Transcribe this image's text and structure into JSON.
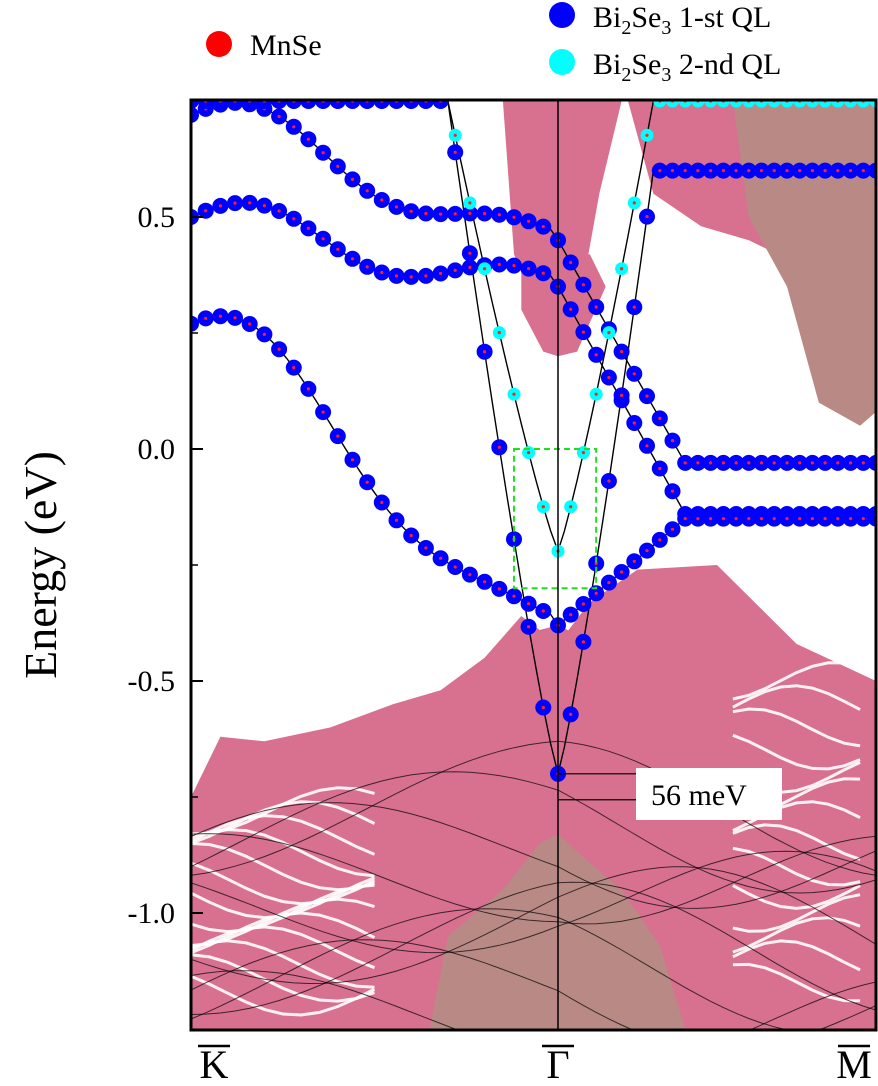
{
  "chart_data": {
    "type": "scatter",
    "title": "",
    "xlabel": "",
    "ylabel": "Energy (eV)",
    "ylim": [
      -1.25,
      0.75
    ],
    "xlim": [
      -1,
      1
    ],
    "y_ticks": [
      0.5,
      0.0,
      -0.5,
      -1.0
    ],
    "y_tick_labels": [
      "0.5",
      "0.0",
      "-0.5",
      "-1.0"
    ],
    "k_points": [
      {
        "x": -1,
        "label": "K",
        "overline": true
      },
      {
        "x": 0,
        "label": "Γ",
        "overline": true
      },
      {
        "x": 1,
        "label": "M",
        "overline": true
      }
    ],
    "grid": false,
    "legend_position": "top",
    "legend": [
      {
        "name": "MnSe",
        "color": "#ff0000"
      },
      {
        "name_parts": [
          "Bi",
          "2",
          "Se",
          "3",
          " 1-st QL"
        ],
        "color": "#0000ff"
      },
      {
        "name_parts": [
          "Bi",
          "2",
          "Se",
          "3",
          " 2-nd QL"
        ],
        "color": "#00ffff"
      }
    ],
    "colors": {
      "bulk_fill": "#d8708f",
      "bulk_fill_dark": "#b98a85",
      "band_line": "#000000",
      "highlight_box": "#22dd22"
    },
    "highlight_box": {
      "x0": -0.12,
      "x1": 0.12,
      "y0": -0.3,
      "y1": 0.0
    },
    "annotation": {
      "text": "56 meV",
      "y_top": -0.7,
      "y_bottom": -0.756
    },
    "series": [
      {
        "name": "Bi2Se3 1-st QL",
        "color": "#0000ff",
        "style": "shallow",
        "y_left": 0.72,
        "y_mid": 0.45,
        "y_right": -0.03
      },
      {
        "name": "Bi2Se3 1-st QL",
        "color": "#0000ff",
        "style": "shallow",
        "y_left": 0.5,
        "y_mid": 0.35,
        "y_right": -0.14
      },
      {
        "name": "Bi2Se3 1-st QL",
        "color": "#0000ff",
        "style": "shallow",
        "y_left": 0.27,
        "y_mid": -0.38,
        "y_right": -0.15
      },
      {
        "name": "Bi2Se3 2-nd QL",
        "color": "#00ffff",
        "style": "dirac",
        "y_left": 0.75,
        "y_mid": -0.22,
        "y_right": 0.75
      },
      {
        "name": "Bi2Se3 1-st QL",
        "color": "#0000ff",
        "style": "dirac",
        "y_left": 0.75,
        "y_mid": -0.7,
        "y_right": 0.6
      }
    ]
  }
}
